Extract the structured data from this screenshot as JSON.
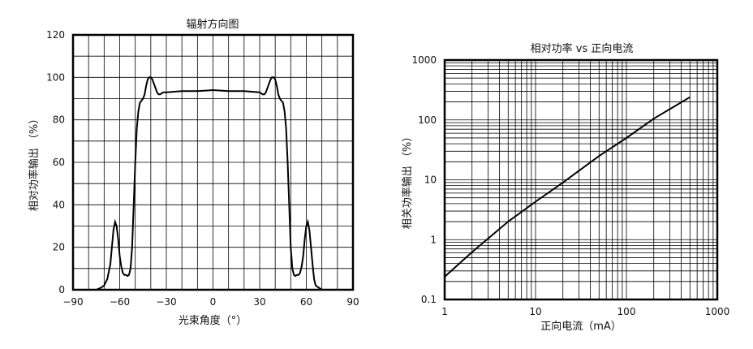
{
  "chart_data": [
    {
      "type": "line",
      "title": "辐射方向图",
      "xlabel": "光束角度（°）",
      "ylabel": "相对功率输出 （%）",
      "xlim": [
        -90,
        90
      ],
      "ylim": [
        0,
        120
      ],
      "xticks": [
        "−90",
        "−60",
        "−30",
        "0",
        "30",
        "60",
        "90"
      ],
      "yticks": [
        "0",
        "20",
        "40",
        "60",
        "80",
        "100",
        "120"
      ],
      "grid": true,
      "series": [
        {
          "x": [
            -75,
            -72,
            -70,
            -68,
            -66,
            -65,
            -64,
            -63,
            -62,
            -61,
            -60,
            -59,
            -58,
            -57,
            -56,
            -55,
            -54,
            -53,
            -52,
            -51,
            -50,
            -49,
            -48,
            -47,
            -46,
            -45,
            -44,
            -43,
            -42,
            -41,
            -40,
            -39,
            -38,
            -37,
            -36,
            -35,
            -34,
            -33,
            -32,
            -30,
            -20,
            -10,
            0,
            10,
            20,
            30,
            32,
            33,
            34,
            35,
            36,
            37,
            38,
            39,
            40,
            41,
            42,
            43,
            44,
            45,
            46,
            47,
            48,
            49,
            50,
            51,
            52,
            53,
            54,
            55,
            56,
            57,
            58,
            59,
            60,
            61,
            62,
            63,
            64,
            65,
            66,
            68,
            70,
            72,
            75
          ],
          "y": [
            0,
            1,
            2,
            5,
            12,
            20,
            28,
            32,
            30,
            24,
            16,
            11,
            8,
            7,
            7,
            6.5,
            7,
            10,
            20,
            40,
            60,
            76,
            84,
            88,
            89,
            90,
            92,
            96,
            99,
            100,
            100,
            99,
            97,
            95,
            93,
            92,
            92,
            92.5,
            93,
            93,
            93.5,
            93.5,
            94,
            93.5,
            93.5,
            93,
            92,
            92,
            93,
            95,
            97,
            99,
            100,
            100,
            99,
            96,
            92,
            90,
            89,
            88,
            84,
            76,
            60,
            40,
            20,
            10,
            7,
            6.5,
            7,
            7,
            8,
            11,
            16,
            24,
            30,
            32,
            28,
            20,
            12,
            5,
            2,
            1,
            0,
            0,
            0
          ]
        }
      ]
    },
    {
      "type": "line",
      "title": "相对功率 vs 正向电流",
      "xlabel": "正向电流（mA）",
      "ylabel": "相关功率输出 （%）",
      "xlim": [
        1,
        1000
      ],
      "ylim": [
        0.1,
        1000
      ],
      "xscale": "log",
      "yscale": "log",
      "xticks": [
        "1",
        "10",
        "100",
        "1000"
      ],
      "yticks": [
        "0.1",
        "1",
        "10",
        "100",
        "1000"
      ],
      "grid": true,
      "series": [
        {
          "x": [
            1,
            2,
            5,
            10,
            20,
            50,
            100,
            200,
            500
          ],
          "y": [
            0.24,
            0.62,
            2.0,
            4.3,
            9.0,
            25,
            50,
            105,
            240
          ]
        }
      ]
    }
  ]
}
